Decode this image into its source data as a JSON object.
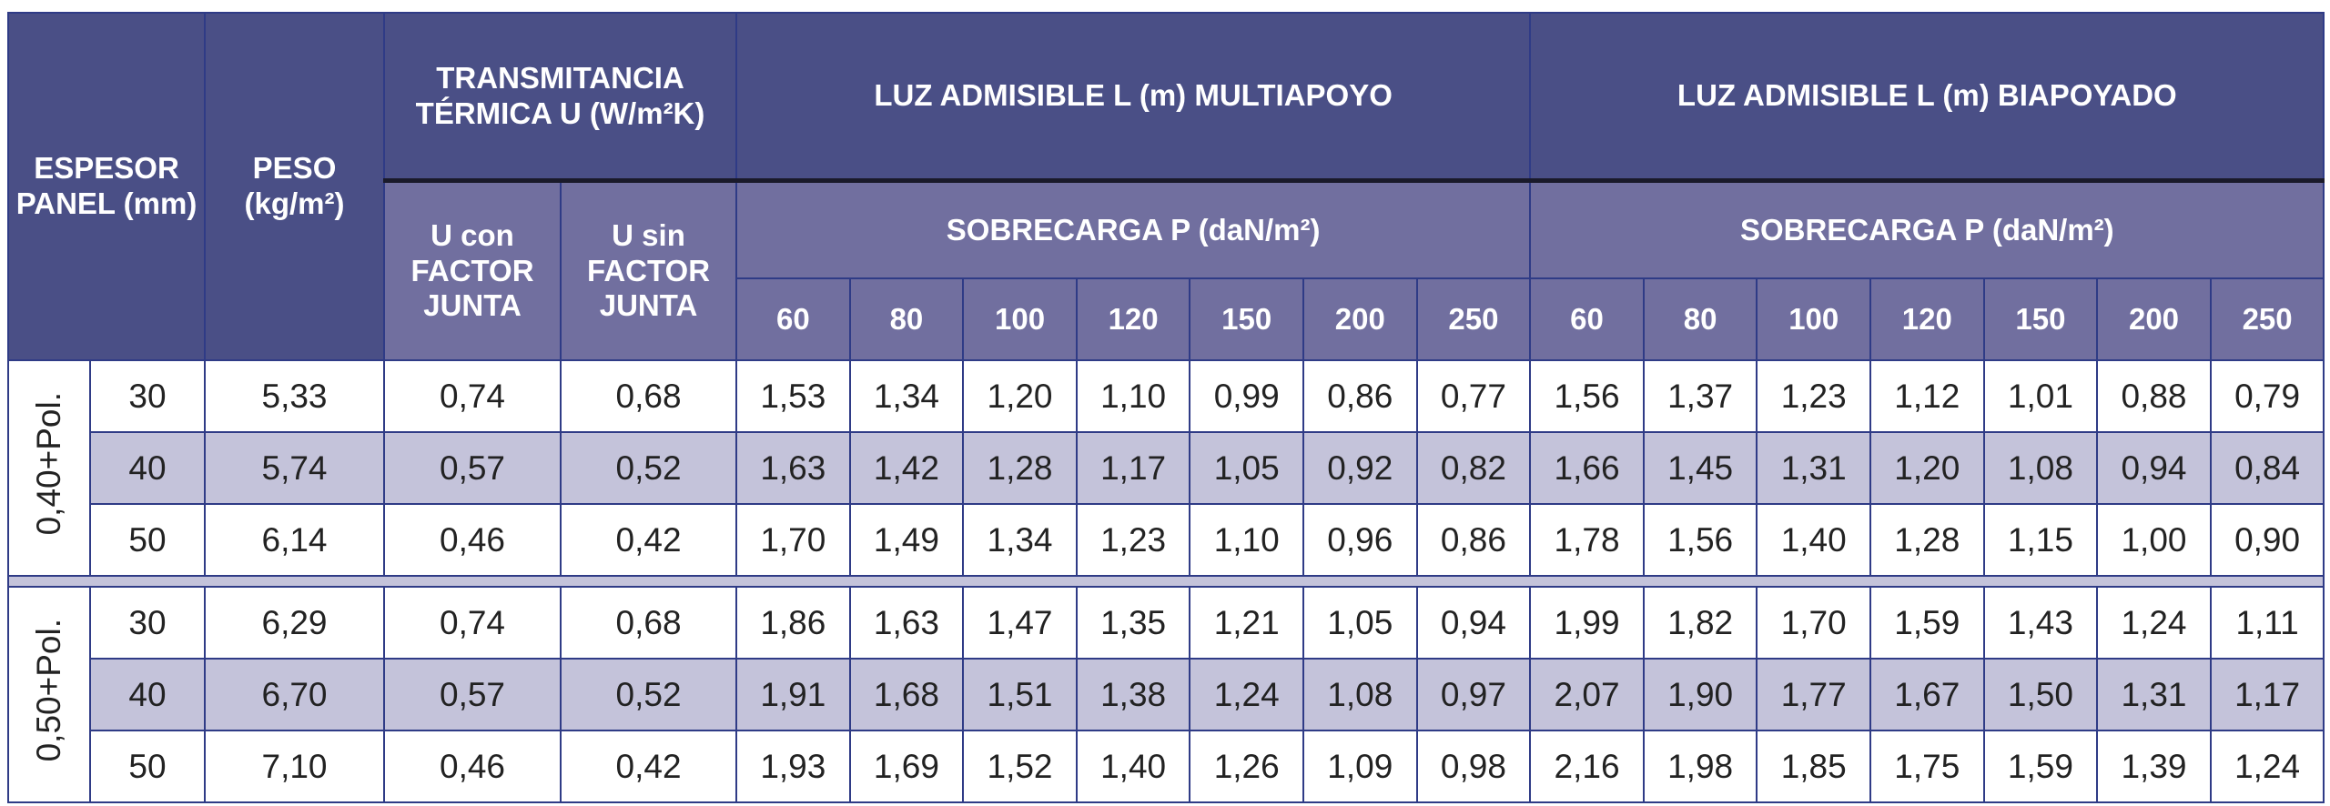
{
  "header": {
    "espesor": "ESPESOR PANEL (mm)",
    "peso": "PESO (kg/m²)",
    "transmitancia": "TRANSMITANCIA TÉRMICA U (W/m²K)",
    "u_con": "U con FACTOR JUNTA",
    "u_sin": "U sin FACTOR JUNTA",
    "luz_multi": "LUZ ADMISIBLE L (m) MULTIAPOYO",
    "luz_bi": "LUZ ADMISIBLE L (m) BIAPOYADO",
    "sobrecarga": "SOBRECARGA P (daN/m²)",
    "loads": [
      "60",
      "80",
      "100",
      "120",
      "150",
      "200",
      "250"
    ]
  },
  "groups": [
    {
      "label": "0,40+Pol.",
      "rows": [
        {
          "esp": "30",
          "peso": "5,33",
          "u_con": "0,74",
          "u_sin": "0,68",
          "multi": [
            "1,53",
            "1,34",
            "1,20",
            "1,10",
            "0,99",
            "0,86",
            "0,77"
          ],
          "bi": [
            "1,56",
            "1,37",
            "1,23",
            "1,12",
            "1,01",
            "0,88",
            "0,79"
          ]
        },
        {
          "esp": "40",
          "peso": "5,74",
          "u_con": "0,57",
          "u_sin": "0,52",
          "multi": [
            "1,63",
            "1,42",
            "1,28",
            "1,17",
            "1,05",
            "0,92",
            "0,82"
          ],
          "bi": [
            "1,66",
            "1,45",
            "1,31",
            "1,20",
            "1,08",
            "0,94",
            "0,84"
          ]
        },
        {
          "esp": "50",
          "peso": "6,14",
          "u_con": "0,46",
          "u_sin": "0,42",
          "multi": [
            "1,70",
            "1,49",
            "1,34",
            "1,23",
            "1,10",
            "0,96",
            "0,86"
          ],
          "bi": [
            "1,78",
            "1,56",
            "1,40",
            "1,28",
            "1,15",
            "1,00",
            "0,90"
          ]
        }
      ]
    },
    {
      "label": "0,50+Pol.",
      "rows": [
        {
          "esp": "30",
          "peso": "6,29",
          "u_con": "0,74",
          "u_sin": "0,68",
          "multi": [
            "1,86",
            "1,63",
            "1,47",
            "1,35",
            "1,21",
            "1,05",
            "0,94"
          ],
          "bi": [
            "1,99",
            "1,82",
            "1,70",
            "1,59",
            "1,43",
            "1,24",
            "1,11"
          ]
        },
        {
          "esp": "40",
          "peso": "6,70",
          "u_con": "0,57",
          "u_sin": "0,52",
          "multi": [
            "1,91",
            "1,68",
            "1,51",
            "1,38",
            "1,24",
            "1,08",
            "0,97"
          ],
          "bi": [
            "2,07",
            "1,90",
            "1,77",
            "1,67",
            "1,50",
            "1,31",
            "1,17"
          ]
        },
        {
          "esp": "50",
          "peso": "7,10",
          "u_con": "0,46",
          "u_sin": "0,42",
          "multi": [
            "1,93",
            "1,69",
            "1,52",
            "1,40",
            "1,26",
            "1,09",
            "0,98"
          ],
          "bi": [
            "2,16",
            "1,98",
            "1,85",
            "1,75",
            "1,59",
            "1,39",
            "1,24"
          ]
        }
      ]
    }
  ],
  "colors": {
    "header_dark": "#4a4f86",
    "header_light": "#716f9f",
    "stripe": "#c4c3da",
    "border": "#2f3b86"
  }
}
